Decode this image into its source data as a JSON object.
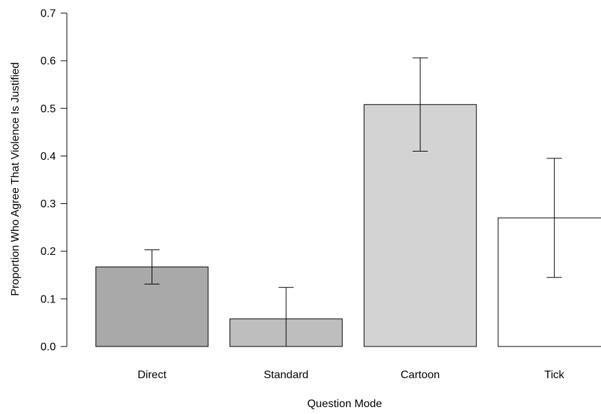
{
  "chart_data": {
    "type": "bar",
    "title": "",
    "xlabel": "Question Mode",
    "ylabel": "Proportion Who Agree That Violence Is Justified",
    "ylim": [
      0,
      0.7
    ],
    "yticks": [
      "0.0",
      "0.1",
      "0.2",
      "0.3",
      "0.4",
      "0.5",
      "0.6",
      "0.7"
    ],
    "grid": false,
    "legend": "none",
    "categories": [
      "Direct",
      "Standard",
      "Cartoon",
      "Tick"
    ],
    "values": [
      0.167,
      0.058,
      0.508,
      0.27
    ],
    "error_low": [
      0.131,
      0.0,
      0.41,
      0.145
    ],
    "error_high": [
      0.203,
      0.124,
      0.606,
      0.395
    ],
    "colors": [
      "#a9a9a9",
      "#bebebe",
      "#d3d3d3",
      "#ffffff"
    ]
  }
}
